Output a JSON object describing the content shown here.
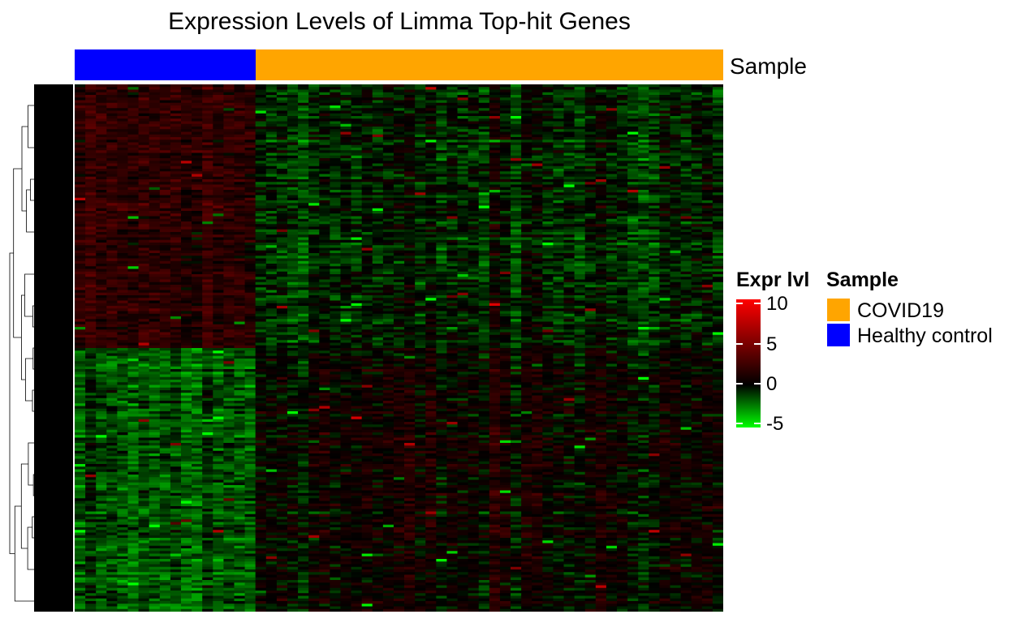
{
  "chart_data": {
    "type": "heatmap",
    "title": "Expression Levels of Limma Top-hit Genes",
    "annotation": {
      "label": "Sample",
      "groups": [
        {
          "name": "Healthy control",
          "n_samples": 17,
          "color": "#0000FF"
        },
        {
          "name": "COVID19",
          "n_samples": 44,
          "color": "#FFA500"
        }
      ]
    },
    "rows": 200,
    "color_scale": {
      "title": "Expr lvl",
      "min": -5,
      "max": 10,
      "stops": [
        {
          "value": -5,
          "color": "#00FF00"
        },
        {
          "value": 0,
          "color": "#000000"
        },
        {
          "value": 10,
          "color": "#FF0000"
        }
      ],
      "ticks": [
        "10",
        "5",
        "0",
        "-5"
      ],
      "tick_values": [
        10,
        5,
        0,
        -5
      ]
    },
    "legend": {
      "title": "Sample",
      "entries": [
        {
          "label": "COVID19",
          "color": "#FFA500"
        },
        {
          "label": "Healthy control",
          "color": "#0000FF"
        }
      ]
    },
    "row_dendrogram": true,
    "column_dendrogram": false
  }
}
